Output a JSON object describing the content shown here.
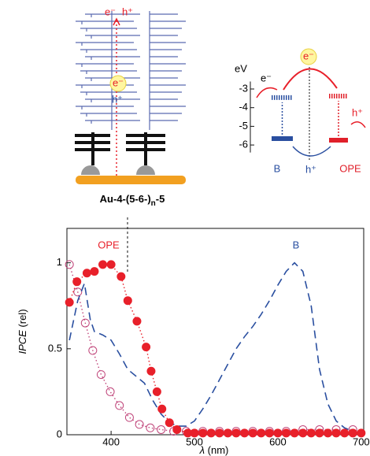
{
  "chart_data": {
    "type": "line",
    "x_label": [
      "λ",
      "(nm)"
    ],
    "y_label": [
      "IPCE",
      "(rel)"
    ],
    "xlim": [
      347,
      703
    ],
    "xticks": [
      400,
      500,
      600,
      700
    ],
    "ylim": [
      0,
      1.2
    ],
    "yticks": [
      0,
      0.5,
      1
    ],
    "series": [
      {
        "name": "OPE",
        "color": "#e8202a",
        "marker": "filled",
        "line": "dotted",
        "x": [
          350,
          359,
          371,
          380,
          390,
          400,
          412,
          420,
          431,
          442,
          448,
          455,
          461,
          470,
          479,
          492,
          500,
          510,
          520,
          530,
          540,
          550,
          560,
          570,
          580,
          590,
          600,
          610,
          620,
          630,
          640,
          650,
          660,
          670,
          680,
          690,
          700
        ],
        "values": [
          0.77,
          0.89,
          0.94,
          0.95,
          0.99,
          0.99,
          0.92,
          0.78,
          0.66,
          0.51,
          0.37,
          0.25,
          0.15,
          0.07,
          0.03,
          0.01,
          0.01,
          0.01,
          0.01,
          0.01,
          0.01,
          0.01,
          0.01,
          0.01,
          0.01,
          0.01,
          0.01,
          0.01,
          0.01,
          0.01,
          0.01,
          0.01,
          0.01,
          0.01,
          0.01,
          0.01,
          0.01
        ]
      },
      {
        "color": "#c0457a",
        "marker": "open",
        "line": "dotted",
        "x": [
          350,
          360,
          369,
          378,
          388,
          399,
          410,
          422,
          434,
          447,
          460,
          475,
          490,
          510,
          530,
          550,
          570,
          590,
          610,
          630,
          650,
          670,
          690
        ],
        "values": [
          0.99,
          0.83,
          0.65,
          0.49,
          0.35,
          0.25,
          0.17,
          0.1,
          0.06,
          0.04,
          0.03,
          0.02,
          0.02,
          0.02,
          0.02,
          0.02,
          0.02,
          0.02,
          0.02,
          0.03,
          0.03,
          0.03,
          0.03
        ]
      },
      {
        "name": "B",
        "color": "#2a4fa0",
        "marker": "none",
        "line": "dashed",
        "x": [
          350,
          360,
          368,
          375,
          380,
          390,
          400,
          410,
          420,
          430,
          440,
          450,
          460,
          470,
          480,
          490,
          500,
          510,
          520,
          530,
          540,
          550,
          560,
          570,
          580,
          590,
          600,
          610,
          620,
          630,
          640,
          650,
          660,
          670,
          680,
          690,
          700
        ],
        "values": [
          0.55,
          0.78,
          0.88,
          0.67,
          0.6,
          0.58,
          0.55,
          0.47,
          0.38,
          0.34,
          0.3,
          0.2,
          0.12,
          0.07,
          0.05,
          0.05,
          0.08,
          0.15,
          0.23,
          0.32,
          0.41,
          0.5,
          0.57,
          0.63,
          0.7,
          0.78,
          0.87,
          0.95,
          1.0,
          0.95,
          0.75,
          0.38,
          0.18,
          0.08,
          0.04,
          0.02,
          0.01
        ]
      }
    ]
  },
  "diagram": {
    "left": {
      "top_e": "e⁻",
      "top_h": "h⁺",
      "center_e": "e⁻",
      "center_h": "h⁺",
      "label_parts": [
        "Au-4-(5-6-)",
        "n",
        "-5"
      ]
    },
    "energy": {
      "axis_label": "eV",
      "ylim": [
        -6.4,
        -2.6
      ],
      "yticks": [
        -3,
        -4,
        -5,
        -6
      ],
      "levels": [
        {
          "name": "B",
          "color": "#2a4fa0",
          "lumo": -3.46,
          "homo": -5.66
        },
        {
          "name": "OPE",
          "color": "#e0202a",
          "lumo": -3.38,
          "homo": -5.74
        }
      ],
      "e_top": "e⁻",
      "e_left": "e⁻",
      "h_right": "h⁺",
      "h_bottom": "h⁺"
    }
  }
}
